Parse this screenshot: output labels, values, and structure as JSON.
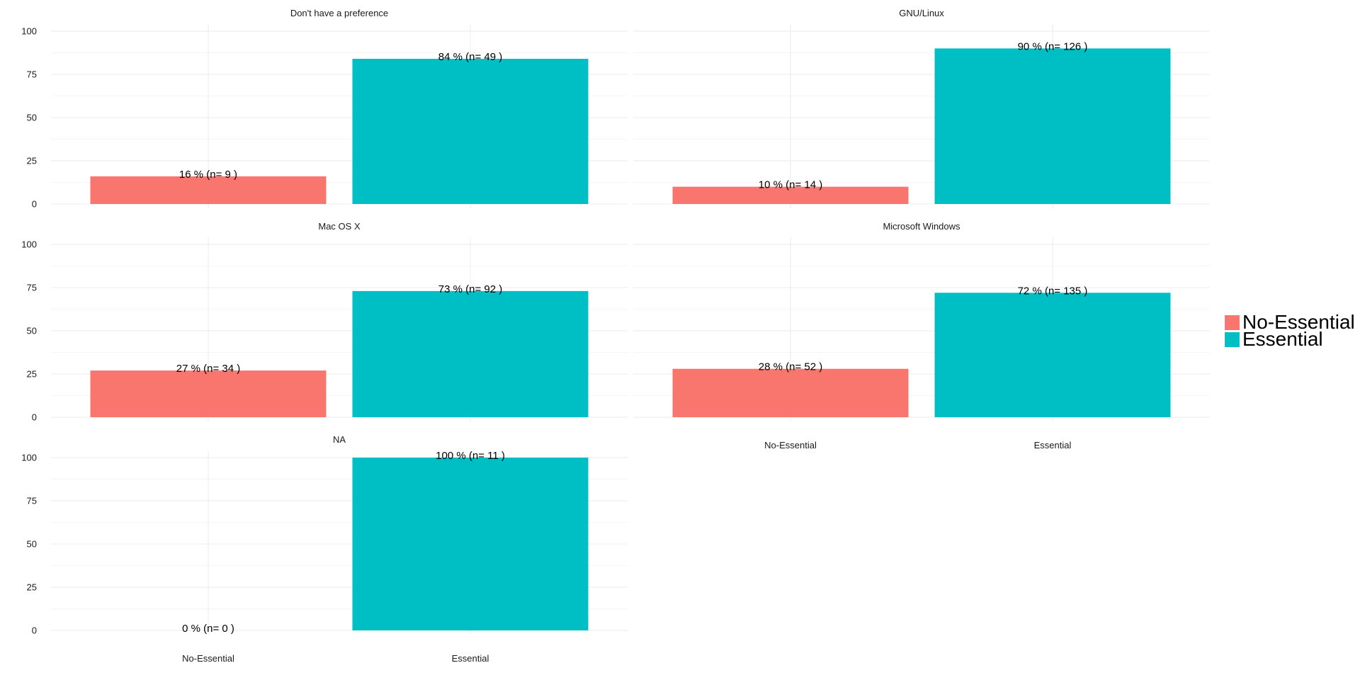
{
  "chart_data": {
    "type": "bar",
    "categories": [
      "No-Essential",
      "Essential"
    ],
    "ylim": [
      0,
      100
    ],
    "yticks": [
      0,
      25,
      50,
      75,
      100
    ],
    "grid": true,
    "legend_position": "right",
    "legend": [
      {
        "label": "No-Essential",
        "color": "#F8766D"
      },
      {
        "label": "Essential",
        "color": "#00BFC4"
      }
    ],
    "panels": [
      {
        "title": "Don't have a preference",
        "values": [
          16,
          84
        ],
        "labels": [
          "16 %  (n= 9 )",
          "84 %  (n= 49 )"
        ]
      },
      {
        "title": "GNU/Linux",
        "values": [
          10,
          90
        ],
        "labels": [
          "10 %  (n= 14 )",
          "90 %  (n= 126 )"
        ]
      },
      {
        "title": "Mac OS X",
        "values": [
          27,
          73
        ],
        "labels": [
          "27 %  (n= 34 )",
          "73 %  (n= 92 )"
        ]
      },
      {
        "title": "Microsoft Windows",
        "values": [
          28,
          72
        ],
        "labels": [
          "28 %  (n= 52 )",
          "72 %  (n= 135 )"
        ]
      },
      {
        "title": "NA",
        "values": [
          0,
          100
        ],
        "labels": [
          "0 %  (n= 0 )",
          "100 %  (n= 11 )"
        ]
      }
    ]
  }
}
